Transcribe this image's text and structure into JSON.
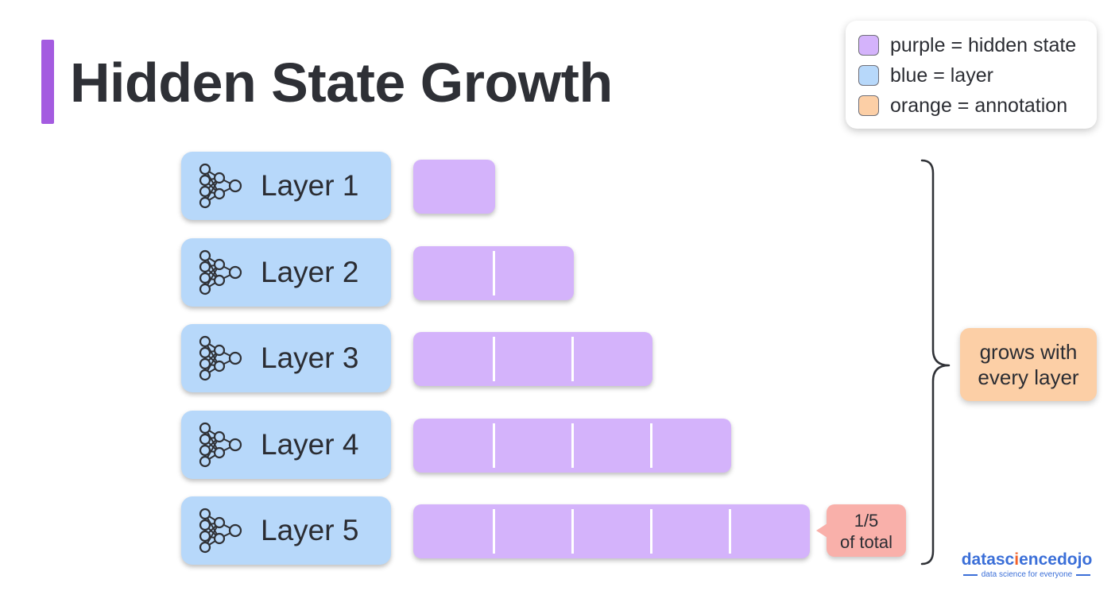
{
  "title": "Hidden State Growth",
  "legend": [
    {
      "label": "purple = hidden state",
      "color": "#d4b3fb"
    },
    {
      "label": "blue = layer",
      "color": "#b7d8fa"
    },
    {
      "label": "orange = annotation",
      "color": "#fccfa6"
    }
  ],
  "layers": [
    {
      "label": "Layer 1",
      "segments": 1
    },
    {
      "label": "Layer 2",
      "segments": 2
    },
    {
      "label": "Layer 3",
      "segments": 3
    },
    {
      "label": "Layer 4",
      "segments": 4
    },
    {
      "label": "Layer 5",
      "segments": 5
    }
  ],
  "callout": {
    "line1": "1/5",
    "line2": "of total"
  },
  "note": {
    "line1": "grows with",
    "line2": "every layer"
  },
  "brand": {
    "part1": "datasc",
    "part2": "i",
    "part3": "encedojo",
    "tagline": "data science for everyone"
  },
  "icons": {
    "layer": "neural-network-icon"
  },
  "colors": {
    "accent": "#a45be0",
    "layer": "#b7d8fa",
    "state": "#d4b3fb",
    "callout": "#f9b0aa",
    "note": "#fccfa6"
  }
}
